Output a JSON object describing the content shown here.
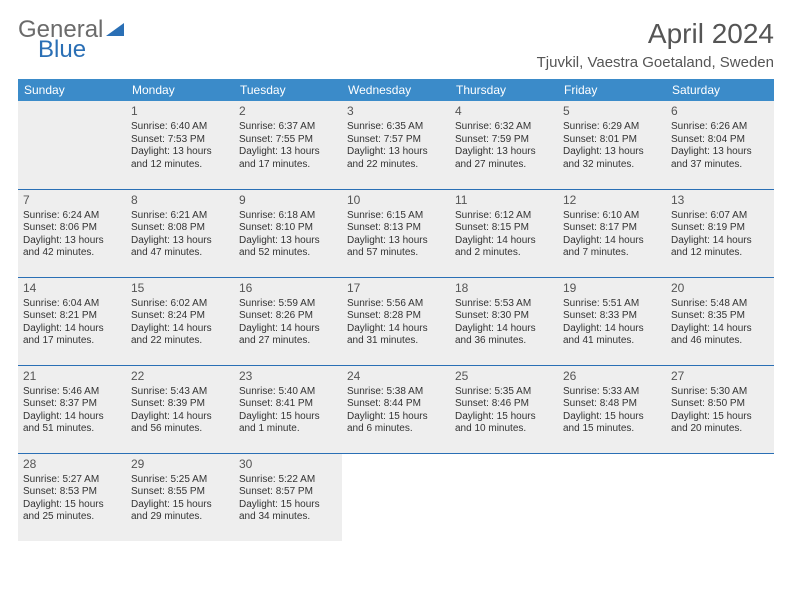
{
  "logo": {
    "part1": "General",
    "part2": "Blue"
  },
  "title": "April 2024",
  "location": "Tjuvkil, Vaestra Goetaland, Sweden",
  "colors": {
    "header_bg": "#3b8bc9",
    "border": "#2a6fb5",
    "shaded": "#eeeeee",
    "text": "#333333",
    "title_text": "#555555"
  },
  "day_headers": [
    "Sunday",
    "Monday",
    "Tuesday",
    "Wednesday",
    "Thursday",
    "Friday",
    "Saturday"
  ],
  "weeks": [
    [
      {
        "empty": true,
        "shaded": true
      },
      {
        "num": "1",
        "shaded": true,
        "sunrise": "Sunrise: 6:40 AM",
        "sunset": "Sunset: 7:53 PM",
        "daylight": "Daylight: 13 hours and 12 minutes."
      },
      {
        "num": "2",
        "shaded": true,
        "sunrise": "Sunrise: 6:37 AM",
        "sunset": "Sunset: 7:55 PM",
        "daylight": "Daylight: 13 hours and 17 minutes."
      },
      {
        "num": "3",
        "shaded": true,
        "sunrise": "Sunrise: 6:35 AM",
        "sunset": "Sunset: 7:57 PM",
        "daylight": "Daylight: 13 hours and 22 minutes."
      },
      {
        "num": "4",
        "shaded": true,
        "sunrise": "Sunrise: 6:32 AM",
        "sunset": "Sunset: 7:59 PM",
        "daylight": "Daylight: 13 hours and 27 minutes."
      },
      {
        "num": "5",
        "shaded": true,
        "sunrise": "Sunrise: 6:29 AM",
        "sunset": "Sunset: 8:01 PM",
        "daylight": "Daylight: 13 hours and 32 minutes."
      },
      {
        "num": "6",
        "shaded": true,
        "sunrise": "Sunrise: 6:26 AM",
        "sunset": "Sunset: 8:04 PM",
        "daylight": "Daylight: 13 hours and 37 minutes."
      }
    ],
    [
      {
        "num": "7",
        "shaded": true,
        "sunrise": "Sunrise: 6:24 AM",
        "sunset": "Sunset: 8:06 PM",
        "daylight": "Daylight: 13 hours and 42 minutes."
      },
      {
        "num": "8",
        "shaded": true,
        "sunrise": "Sunrise: 6:21 AM",
        "sunset": "Sunset: 8:08 PM",
        "daylight": "Daylight: 13 hours and 47 minutes."
      },
      {
        "num": "9",
        "shaded": true,
        "sunrise": "Sunrise: 6:18 AM",
        "sunset": "Sunset: 8:10 PM",
        "daylight": "Daylight: 13 hours and 52 minutes."
      },
      {
        "num": "10",
        "shaded": true,
        "sunrise": "Sunrise: 6:15 AM",
        "sunset": "Sunset: 8:13 PM",
        "daylight": "Daylight: 13 hours and 57 minutes."
      },
      {
        "num": "11",
        "shaded": true,
        "sunrise": "Sunrise: 6:12 AM",
        "sunset": "Sunset: 8:15 PM",
        "daylight": "Daylight: 14 hours and 2 minutes."
      },
      {
        "num": "12",
        "shaded": true,
        "sunrise": "Sunrise: 6:10 AM",
        "sunset": "Sunset: 8:17 PM",
        "daylight": "Daylight: 14 hours and 7 minutes."
      },
      {
        "num": "13",
        "shaded": true,
        "sunrise": "Sunrise: 6:07 AM",
        "sunset": "Sunset: 8:19 PM",
        "daylight": "Daylight: 14 hours and 12 minutes."
      }
    ],
    [
      {
        "num": "14",
        "shaded": true,
        "sunrise": "Sunrise: 6:04 AM",
        "sunset": "Sunset: 8:21 PM",
        "daylight": "Daylight: 14 hours and 17 minutes."
      },
      {
        "num": "15",
        "shaded": true,
        "sunrise": "Sunrise: 6:02 AM",
        "sunset": "Sunset: 8:24 PM",
        "daylight": "Daylight: 14 hours and 22 minutes."
      },
      {
        "num": "16",
        "shaded": true,
        "sunrise": "Sunrise: 5:59 AM",
        "sunset": "Sunset: 8:26 PM",
        "daylight": "Daylight: 14 hours and 27 minutes."
      },
      {
        "num": "17",
        "shaded": true,
        "sunrise": "Sunrise: 5:56 AM",
        "sunset": "Sunset: 8:28 PM",
        "daylight": "Daylight: 14 hours and 31 minutes."
      },
      {
        "num": "18",
        "shaded": true,
        "sunrise": "Sunrise: 5:53 AM",
        "sunset": "Sunset: 8:30 PM",
        "daylight": "Daylight: 14 hours and 36 minutes."
      },
      {
        "num": "19",
        "shaded": true,
        "sunrise": "Sunrise: 5:51 AM",
        "sunset": "Sunset: 8:33 PM",
        "daylight": "Daylight: 14 hours and 41 minutes."
      },
      {
        "num": "20",
        "shaded": true,
        "sunrise": "Sunrise: 5:48 AM",
        "sunset": "Sunset: 8:35 PM",
        "daylight": "Daylight: 14 hours and 46 minutes."
      }
    ],
    [
      {
        "num": "21",
        "shaded": true,
        "sunrise": "Sunrise: 5:46 AM",
        "sunset": "Sunset: 8:37 PM",
        "daylight": "Daylight: 14 hours and 51 minutes."
      },
      {
        "num": "22",
        "shaded": true,
        "sunrise": "Sunrise: 5:43 AM",
        "sunset": "Sunset: 8:39 PM",
        "daylight": "Daylight: 14 hours and 56 minutes."
      },
      {
        "num": "23",
        "shaded": true,
        "sunrise": "Sunrise: 5:40 AM",
        "sunset": "Sunset: 8:41 PM",
        "daylight": "Daylight: 15 hours and 1 minute."
      },
      {
        "num": "24",
        "shaded": true,
        "sunrise": "Sunrise: 5:38 AM",
        "sunset": "Sunset: 8:44 PM",
        "daylight": "Daylight: 15 hours and 6 minutes."
      },
      {
        "num": "25",
        "shaded": true,
        "sunrise": "Sunrise: 5:35 AM",
        "sunset": "Sunset: 8:46 PM",
        "daylight": "Daylight: 15 hours and 10 minutes."
      },
      {
        "num": "26",
        "shaded": true,
        "sunrise": "Sunrise: 5:33 AM",
        "sunset": "Sunset: 8:48 PM",
        "daylight": "Daylight: 15 hours and 15 minutes."
      },
      {
        "num": "27",
        "shaded": true,
        "sunrise": "Sunrise: 5:30 AM",
        "sunset": "Sunset: 8:50 PM",
        "daylight": "Daylight: 15 hours and 20 minutes."
      }
    ],
    [
      {
        "num": "28",
        "shaded": true,
        "sunrise": "Sunrise: 5:27 AM",
        "sunset": "Sunset: 8:53 PM",
        "daylight": "Daylight: 15 hours and 25 minutes."
      },
      {
        "num": "29",
        "shaded": true,
        "sunrise": "Sunrise: 5:25 AM",
        "sunset": "Sunset: 8:55 PM",
        "daylight": "Daylight: 15 hours and 29 minutes."
      },
      {
        "num": "30",
        "shaded": true,
        "sunrise": "Sunrise: 5:22 AM",
        "sunset": "Sunset: 8:57 PM",
        "daylight": "Daylight: 15 hours and 34 minutes."
      },
      {
        "empty": true
      },
      {
        "empty": true
      },
      {
        "empty": true
      },
      {
        "empty": true
      }
    ]
  ]
}
